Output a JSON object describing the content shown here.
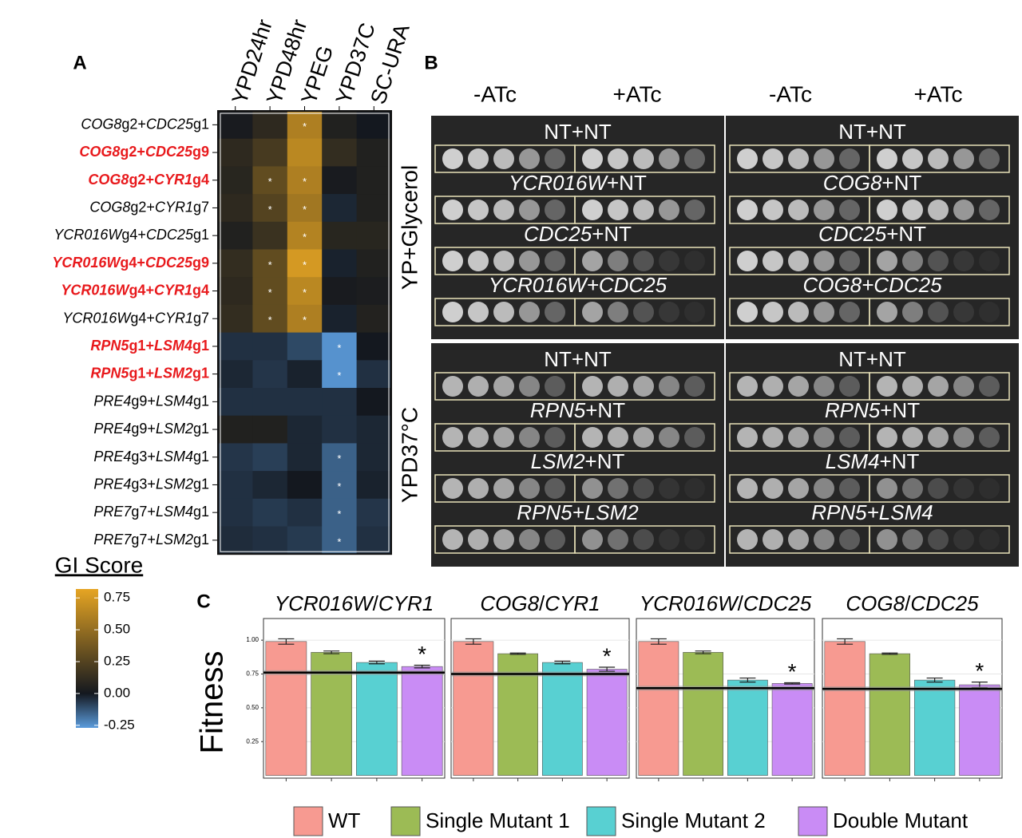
{
  "chart_data": [
    {
      "type": "heatmap",
      "panel_label": "A",
      "columns": [
        "YPD24hr",
        "YPD48hr",
        "YPEG",
        "YPD37C",
        "SC-URA"
      ],
      "star_symbol": "*",
      "rows": [
        {
          "label_parts": [
            {
              "text": "COG8",
              "italic": true
            },
            {
              "text": "g2+"
            },
            {
              "text": "CDC25",
              "italic": true
            },
            {
              "text": "g1"
            }
          ],
          "highlight": false,
          "values": [
            0.02,
            0.1,
            0.6,
            0.05,
            0.0
          ],
          "significant": [
            false,
            false,
            true,
            false,
            false
          ]
        },
        {
          "label_parts": [
            {
              "text": "COG8",
              "italic": true
            },
            {
              "text": "g2+"
            },
            {
              "text": "CDC25",
              "italic": true
            },
            {
              "text": "g9"
            }
          ],
          "highlight": true,
          "values": [
            0.1,
            0.2,
            0.65,
            0.12,
            0.05
          ],
          "significant": [
            false,
            false,
            false,
            false,
            false
          ]
        },
        {
          "label_parts": [
            {
              "text": "COG8",
              "italic": true
            },
            {
              "text": "g2+"
            },
            {
              "text": "CYR1",
              "italic": true
            },
            {
              "text": "g4"
            }
          ],
          "highlight": true,
          "values": [
            0.08,
            0.3,
            0.6,
            0.02,
            0.05
          ],
          "significant": [
            false,
            true,
            true,
            false,
            false
          ]
        },
        {
          "label_parts": [
            {
              "text": "COG8",
              "italic": true
            },
            {
              "text": "g2+"
            },
            {
              "text": "CYR1",
              "italic": true
            },
            {
              "text": "g7"
            }
          ],
          "highlight": false,
          "values": [
            0.1,
            0.25,
            0.55,
            -0.03,
            0.05
          ],
          "significant": [
            false,
            true,
            true,
            false,
            false
          ]
        },
        {
          "label_parts": [
            {
              "text": "YCR016W",
              "italic": true
            },
            {
              "text": "g4+"
            },
            {
              "text": "CDC25",
              "italic": true
            },
            {
              "text": "g1"
            }
          ],
          "highlight": false,
          "values": [
            0.05,
            0.15,
            0.62,
            0.08,
            0.08
          ],
          "significant": [
            false,
            false,
            true,
            false,
            false
          ]
        },
        {
          "label_parts": [
            {
              "text": "YCR016W",
              "italic": true
            },
            {
              "text": "g4+"
            },
            {
              "text": "CDC25",
              "italic": true
            },
            {
              "text": "g9"
            }
          ],
          "highlight": true,
          "values": [
            0.12,
            0.3,
            0.75,
            -0.02,
            0.05
          ],
          "significant": [
            false,
            true,
            true,
            false,
            false
          ]
        },
        {
          "label_parts": [
            {
              "text": "YCR016W",
              "italic": true
            },
            {
              "text": "g4+"
            },
            {
              "text": "CYR1",
              "italic": true
            },
            {
              "text": "g4"
            }
          ],
          "highlight": true,
          "values": [
            0.1,
            0.3,
            0.65,
            0.02,
            0.03
          ],
          "significant": [
            false,
            true,
            true,
            false,
            false
          ]
        },
        {
          "label_parts": [
            {
              "text": "YCR016W",
              "italic": true
            },
            {
              "text": "g4+"
            },
            {
              "text": "CYR1",
              "italic": true
            },
            {
              "text": "g7"
            }
          ],
          "highlight": false,
          "values": [
            0.12,
            0.3,
            0.6,
            -0.02,
            0.06
          ],
          "significant": [
            false,
            true,
            true,
            false,
            false
          ]
        },
        {
          "label_parts": [
            {
              "text": "RPN5",
              "italic": true
            },
            {
              "text": "g1+"
            },
            {
              "text": "LSM4",
              "italic": true
            },
            {
              "text": "g1"
            }
          ],
          "highlight": true,
          "values": [
            -0.05,
            -0.05,
            -0.1,
            -0.25,
            0.0
          ],
          "significant": [
            false,
            false,
            false,
            true,
            false
          ]
        },
        {
          "label_parts": [
            {
              "text": "RPN5",
              "italic": true
            },
            {
              "text": "g1+"
            },
            {
              "text": "LSM2",
              "italic": true
            },
            {
              "text": "g1"
            }
          ],
          "highlight": true,
          "values": [
            -0.03,
            -0.06,
            -0.02,
            -0.25,
            -0.05
          ],
          "significant": [
            false,
            false,
            false,
            true,
            false
          ]
        },
        {
          "label_parts": [
            {
              "text": "PRE4",
              "italic": true
            },
            {
              "text": "g9+"
            },
            {
              "text": "LSM4",
              "italic": true
            },
            {
              "text": "g1"
            }
          ],
          "highlight": false,
          "values": [
            -0.05,
            -0.05,
            -0.05,
            -0.05,
            0.0
          ],
          "significant": [
            false,
            false,
            false,
            false,
            false
          ]
        },
        {
          "label_parts": [
            {
              "text": "PRE4",
              "italic": true
            },
            {
              "text": "g9+"
            },
            {
              "text": "LSM2",
              "italic": true
            },
            {
              "text": "g1"
            }
          ],
          "highlight": false,
          "values": [
            0.05,
            0.05,
            -0.03,
            -0.05,
            -0.03
          ],
          "significant": [
            false,
            false,
            false,
            false,
            false
          ]
        },
        {
          "label_parts": [
            {
              "text": "PRE4",
              "italic": true
            },
            {
              "text": "g3+"
            },
            {
              "text": "LSM4",
              "italic": true
            },
            {
              "text": "g1"
            }
          ],
          "highlight": false,
          "values": [
            -0.06,
            -0.08,
            -0.03,
            -0.15,
            -0.03
          ],
          "significant": [
            false,
            false,
            false,
            true,
            false
          ]
        },
        {
          "label_parts": [
            {
              "text": "PRE4",
              "italic": true
            },
            {
              "text": "g3+"
            },
            {
              "text": "LSM2",
              "italic": true
            },
            {
              "text": "g1"
            }
          ],
          "highlight": false,
          "values": [
            -0.05,
            -0.03,
            0.0,
            -0.15,
            -0.02
          ],
          "significant": [
            false,
            false,
            false,
            true,
            false
          ]
        },
        {
          "label_parts": [
            {
              "text": "PRE7",
              "italic": true
            },
            {
              "text": "g7+"
            },
            {
              "text": "LSM4",
              "italic": true
            },
            {
              "text": "g1"
            }
          ],
          "highlight": false,
          "values": [
            -0.05,
            -0.07,
            -0.05,
            -0.15,
            -0.06
          ],
          "significant": [
            false,
            false,
            false,
            true,
            false
          ]
        },
        {
          "label_parts": [
            {
              "text": "PRE7",
              "italic": true
            },
            {
              "text": "g7+"
            },
            {
              "text": "LSM2",
              "italic": true
            },
            {
              "text": "g1"
            }
          ],
          "highlight": false,
          "values": [
            -0.04,
            -0.05,
            -0.07,
            -0.15,
            -0.05
          ],
          "significant": [
            false,
            false,
            false,
            true,
            false
          ]
        }
      ],
      "colorbar": {
        "title": "GI Score",
        "lim": [
          -0.27,
          0.82
        ],
        "ticks": [
          {
            "value": 0.75,
            "label": "0.75"
          },
          {
            "value": 0.5,
            "label": "0.50"
          },
          {
            "value": 0.25,
            "label": "0.25"
          },
          {
            "value": 0,
            "label": "0.00"
          },
          {
            "value": -0.25,
            "label": "-0.25"
          }
        ],
        "colors": {
          "negative": "#5b9cdc",
          "zero": "#14181f",
          "positive": "#e6a523"
        }
      }
    },
    {
      "type": "bar",
      "panel_label": "C",
      "y_label": "Fitness",
      "star_symbol": "*",
      "ylim": [
        -0.02,
        1.16
      ],
      "yticks": [
        {
          "value": 0.25,
          "label": "0.25"
        },
        {
          "value": 0.5,
          "label": "0.50"
        },
        {
          "value": 0.75,
          "label": "0.75"
        },
        {
          "value": 1,
          "label": "1.00"
        }
      ],
      "series": [
        {
          "name": "WT",
          "color": "#f79a91"
        },
        {
          "name": "Single Mutant 1",
          "color": "#9cbb55"
        },
        {
          "name": "Single Mutant 2",
          "color": "#58d0d2"
        },
        {
          "name": "Double Mutant",
          "color": "#c98cf5"
        }
      ],
      "facets": [
        {
          "title_parts": [
            {
              "text": "YCR016W",
              "italic": true
            },
            {
              "text": "/"
            },
            {
              "text": "CYR1",
              "italic": true
            }
          ],
          "values": [
            0.99,
            0.91,
            0.835,
            0.805
          ],
          "errors": [
            0.02,
            0.01,
            0.01,
            0.01
          ],
          "expected": 0.76,
          "significant": true
        },
        {
          "title_parts": [
            {
              "text": "COG8",
              "italic": true
            },
            {
              "text": "/"
            },
            {
              "text": "CYR1",
              "italic": true
            }
          ],
          "values": [
            0.99,
            0.9,
            0.835,
            0.785
          ],
          "errors": [
            0.02,
            0.005,
            0.01,
            0.015
          ],
          "expected": 0.75,
          "significant": true
        },
        {
          "title_parts": [
            {
              "text": "YCR016W",
              "italic": true
            },
            {
              "text": "/"
            },
            {
              "text": "CDC25",
              "italic": true
            }
          ],
          "values": [
            0.99,
            0.91,
            0.705,
            0.68
          ],
          "errors": [
            0.02,
            0.01,
            0.015,
            0.005
          ],
          "expected": 0.645,
          "significant": true
        },
        {
          "title_parts": [
            {
              "text": "COG8",
              "italic": true
            },
            {
              "text": "/"
            },
            {
              "text": "CDC25",
              "italic": true
            }
          ],
          "values": [
            0.99,
            0.9,
            0.705,
            0.67
          ],
          "errors": [
            0.02,
            0.005,
            0.015,
            0.02
          ],
          "expected": 0.64,
          "significant": true
        }
      ]
    }
  ],
  "panel_b": {
    "panel_label": "B",
    "conditions": [
      "-ATc",
      "+ATc",
      "-ATc",
      "+ATc"
    ],
    "media": [
      "YP+Glycerol",
      "YPD37°C"
    ],
    "plates": [
      {
        "labels": [
          [
            {
              "text": "NT+NT"
            }
          ],
          [
            {
              "text": "YCR016W",
              "italic": true
            },
            {
              "text": "+NT"
            }
          ],
          [
            {
              "text": "CDC25",
              "italic": true
            },
            {
              "text": "+NT"
            }
          ],
          [
            {
              "text": "YCR016W+CDC25",
              "italic": true
            }
          ]
        ]
      },
      {
        "labels": [
          [
            {
              "text": "NT+NT"
            }
          ],
          [
            {
              "text": "COG8",
              "italic": true
            },
            {
              "text": "+NT"
            }
          ],
          [
            {
              "text": "CDC25",
              "italic": true
            },
            {
              "text": "+NT"
            }
          ],
          [
            {
              "text": "COG8+CDC25",
              "italic": true
            }
          ]
        ]
      },
      {
        "labels": [
          [
            {
              "text": "NT+NT"
            }
          ],
          [
            {
              "text": "RPN5",
              "italic": true
            },
            {
              "text": "+NT"
            }
          ],
          [
            {
              "text": "LSM2",
              "italic": true
            },
            {
              "text": "+NT"
            }
          ],
          [
            {
              "text": "RPN5+LSM2",
              "italic": true
            }
          ]
        ]
      },
      {
        "labels": [
          [
            {
              "text": "NT+NT"
            }
          ],
          [
            {
              "text": "RPN5",
              "italic": true
            },
            {
              "text": "+NT"
            }
          ],
          [
            {
              "text": "LSM4",
              "italic": true
            },
            {
              "text": "+NT"
            }
          ],
          [
            {
              "text": "RPN5+LSM4",
              "italic": true
            }
          ]
        ]
      }
    ]
  }
}
